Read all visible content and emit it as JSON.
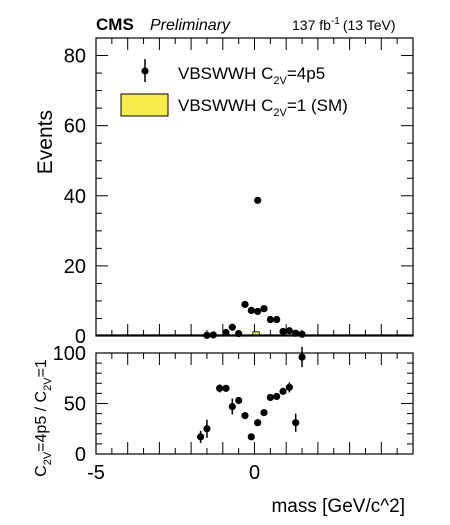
{
  "header": {
    "experiment": "CMS",
    "status": "Preliminary",
    "lumi": "137 fb",
    "lumi_exp": "-1",
    "energy": "(13 TeV)"
  },
  "chart_data": [
    {
      "type": "scatter",
      "panel": "main",
      "xlim": [
        -5,
        5
      ],
      "ylim": [
        0,
        85
      ],
      "ylabel": "Events",
      "yticks": [
        0,
        20,
        40,
        60,
        80
      ],
      "legend_placement": "top-left",
      "legend": [
        {
          "text": "VBSWWH C",
          "sub": "2V",
          "suffix": "=4p5",
          "marker": "point"
        },
        {
          "text": "VBSWWH C",
          "sub": "2V",
          "suffix": "=1 (SM)",
          "marker": "box"
        }
      ],
      "series": [
        {
          "name": "VBSWWH C2V=4p5",
          "marker": "point",
          "color": "#000000",
          "x": [
            -1.5,
            -1.3,
            -0.9,
            -0.7,
            -0.5,
            -0.3,
            -0.1,
            0.1,
            0.1,
            0.3,
            0.5,
            0.7,
            0.9,
            1.1,
            1.3,
            1.5
          ],
          "y": [
            0.2,
            0.3,
            1.0,
            2.5,
            0.7,
            9.0,
            7.3,
            7.0,
            38.7,
            7.8,
            4.7,
            4.7,
            1.3,
            1.5,
            0.8,
            0.5
          ]
        },
        {
          "name": "VBSWWH C2V=1 (SM)",
          "marker": "box",
          "color": "#f5ec4b",
          "x": [
            0.05
          ],
          "width": 0.2,
          "y": [
            1.2
          ]
        }
      ]
    },
    {
      "type": "scatter",
      "panel": "ratio",
      "xlim": [
        -5,
        5
      ],
      "ylim": [
        0,
        100
      ],
      "xlabel": "mass [GeV/c^2]",
      "ylabel_parts": [
        "C",
        "2V",
        "=4p5 / C",
        "2V",
        "=1"
      ],
      "xticks": [
        -5,
        0
      ],
      "yticks": [
        0,
        50,
        100
      ],
      "series": [
        {
          "name": "ratio",
          "color": "#000000",
          "x": [
            -1.7,
            -1.5,
            -1.1,
            -0.9,
            -0.7,
            -0.5,
            -0.3,
            -0.1,
            0.1,
            0.3,
            0.5,
            0.7,
            0.9,
            1.1,
            1.3,
            1.5
          ],
          "y": [
            17,
            25,
            65,
            65,
            47,
            53,
            38,
            17,
            31,
            41,
            56,
            57,
            62,
            66,
            31,
            96
          ],
          "yerr": [
            6,
            9,
            4,
            3,
            8,
            3,
            3,
            3,
            3,
            3,
            3,
            3,
            3,
            5,
            9,
            10
          ]
        }
      ]
    }
  ]
}
